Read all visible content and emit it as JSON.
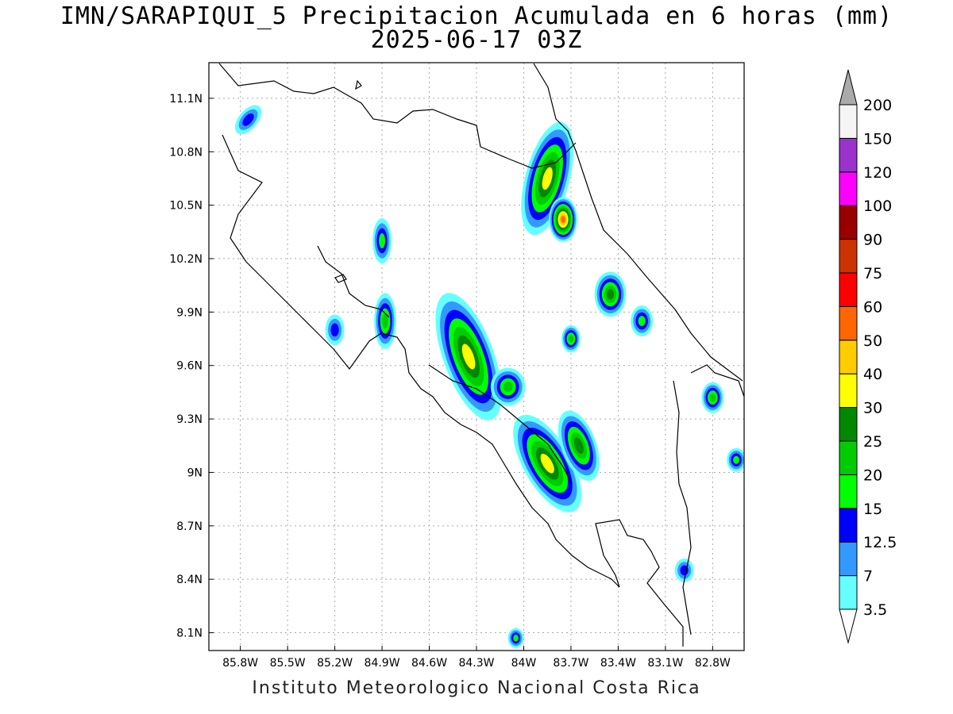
{
  "title_line1": "IMN/SARAPIQUI_5 Precipitacion Acumulada en 6 horas (mm)",
  "title_line2": "2025-06-17 03Z",
  "footer": "Instituto Meteorologico Nacional Costa Rica",
  "map": {
    "lon_range": [
      -86.0,
      -82.6
    ],
    "lat_range": [
      8.0,
      11.3
    ],
    "lon_ticks": [
      {
        "value": -85.8,
        "label": "85.8W"
      },
      {
        "value": -85.5,
        "label": "85.5W"
      },
      {
        "value": -85.2,
        "label": "85.2W"
      },
      {
        "value": -84.9,
        "label": "84.9W"
      },
      {
        "value": -84.6,
        "label": "84.6W"
      },
      {
        "value": -84.3,
        "label": "84.3W"
      },
      {
        "value": -84.0,
        "label": "84W"
      },
      {
        "value": -83.7,
        "label": "83.7W"
      },
      {
        "value": -83.4,
        "label": "83.4W"
      },
      {
        "value": -83.1,
        "label": "83.1W"
      },
      {
        "value": -82.8,
        "label": "82.8W"
      }
    ],
    "lat_ticks": [
      {
        "value": 11.1,
        "label": "11.1N"
      },
      {
        "value": 10.8,
        "label": "10.8N"
      },
      {
        "value": 10.5,
        "label": "10.5N"
      },
      {
        "value": 10.2,
        "label": "10.2N"
      },
      {
        "value": 9.9,
        "label": "9.9N"
      },
      {
        "value": 9.6,
        "label": "9.6N"
      },
      {
        "value": 9.3,
        "label": "9.3N"
      },
      {
        "value": 9.0,
        "label": "9N"
      },
      {
        "value": 8.7,
        "label": "8.7N"
      },
      {
        "value": 8.4,
        "label": "8.4N"
      },
      {
        "value": 8.1,
        "label": "8.1N"
      }
    ]
  },
  "legend": {
    "levels": [
      "3.5",
      "7",
      "12.5",
      "15",
      "20",
      "25",
      "30",
      "40",
      "50",
      "60",
      "75",
      "90",
      "100",
      "120",
      "150",
      "200"
    ],
    "colors": [
      "#66ffff",
      "#3399ff",
      "#0000ff",
      "#00ff00",
      "#00cc00",
      "#008800",
      "#ffff00",
      "#ffcc00",
      "#ff6600",
      "#ff0000",
      "#cc3300",
      "#990000",
      "#ff00ff",
      "#9933cc",
      "#f5f5f5",
      "#aaaaaa"
    ]
  },
  "rain_cells": [
    {
      "lon": -83.85,
      "lat": 10.65,
      "rx": 0.11,
      "ry": 0.3,
      "rot": 15,
      "level": 7
    },
    {
      "lon": -83.75,
      "lat": 10.42,
      "rx": 0.06,
      "ry": 0.1,
      "rot": 0,
      "level": 9
    },
    {
      "lon": -84.35,
      "lat": 9.65,
      "rx": 0.13,
      "ry": 0.35,
      "rot": -20,
      "level": 7
    },
    {
      "lon": -84.1,
      "lat": 9.48,
      "rx": 0.08,
      "ry": 0.08,
      "rot": 0,
      "level": 5
    },
    {
      "lon": -83.85,
      "lat": 9.05,
      "rx": 0.12,
      "ry": 0.28,
      "rot": -30,
      "level": 7
    },
    {
      "lon": -83.65,
      "lat": 9.15,
      "rx": 0.08,
      "ry": 0.18,
      "rot": -20,
      "level": 6
    },
    {
      "lon": -83.45,
      "lat": 10.0,
      "rx": 0.07,
      "ry": 0.1,
      "rot": 0,
      "level": 6
    },
    {
      "lon": -84.88,
      "lat": 9.85,
      "rx": 0.04,
      "ry": 0.13,
      "rot": 0,
      "level": 5
    },
    {
      "lon": -85.2,
      "lat": 9.8,
      "rx": 0.03,
      "ry": 0.06,
      "rot": 0,
      "level": 3
    },
    {
      "lon": -84.9,
      "lat": 10.3,
      "rx": 0.03,
      "ry": 0.1,
      "rot": 0,
      "level": 4
    },
    {
      "lon": -82.8,
      "lat": 9.42,
      "rx": 0.04,
      "ry": 0.06,
      "rot": 0,
      "level": 5
    },
    {
      "lon": -85.75,
      "lat": 10.98,
      "rx": 0.03,
      "ry": 0.07,
      "rot": 40,
      "level": 3
    },
    {
      "lon": -83.25,
      "lat": 9.85,
      "rx": 0.04,
      "ry": 0.06,
      "rot": 0,
      "level": 4
    },
    {
      "lon": -83.7,
      "lat": 9.75,
      "rx": 0.03,
      "ry": 0.05,
      "rot": 0,
      "level": 5
    },
    {
      "lon": -82.98,
      "lat": 8.45,
      "rx": 0.03,
      "ry": 0.04,
      "rot": 0,
      "level": 3
    },
    {
      "lon": -84.05,
      "lat": 8.07,
      "rx": 0.02,
      "ry": 0.03,
      "rot": 0,
      "level": 4
    },
    {
      "lon": -82.65,
      "lat": 9.07,
      "rx": 0.03,
      "ry": 0.04,
      "rot": 0,
      "level": 4
    }
  ]
}
